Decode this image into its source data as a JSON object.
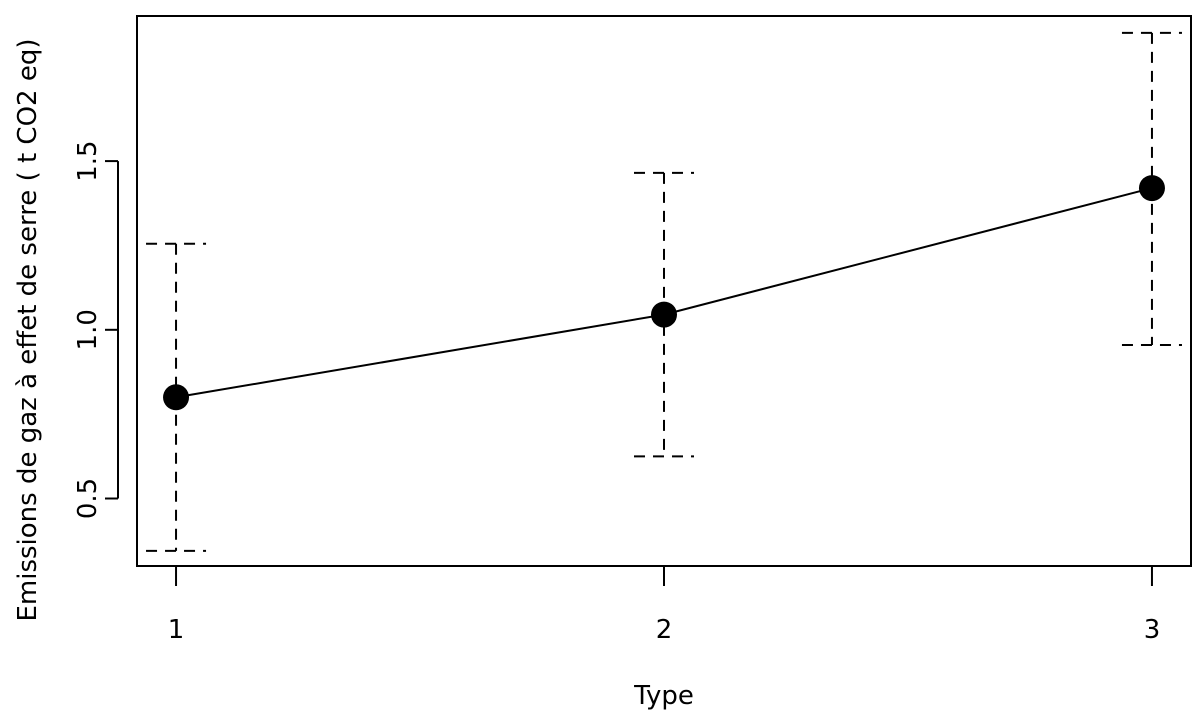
{
  "chart_data": {
    "type": "line",
    "title": "",
    "xlabel": "Type",
    "ylabel": "Emissions de gaz à effet de serre ( t CO2 eq)",
    "x": [
      1,
      2,
      3
    ],
    "x_tick_labels": [
      "1",
      "2",
      "3"
    ],
    "y_ticks": [
      0.5,
      1.0,
      1.5
    ],
    "y_tick_labels": [
      "0.5",
      "1.0",
      "1.5"
    ],
    "xlim": [
      0.92,
      3.08
    ],
    "ylim": [
      0.3,
      1.93
    ],
    "grid": false,
    "series": [
      {
        "values": [
          0.8,
          1.045,
          1.42
        ],
        "lower": [
          0.345,
          0.625,
          0.955
        ],
        "upper": [
          1.255,
          1.465,
          1.88
        ],
        "marker": "filled-circle",
        "errorbar_style": "dashed"
      }
    ]
  }
}
